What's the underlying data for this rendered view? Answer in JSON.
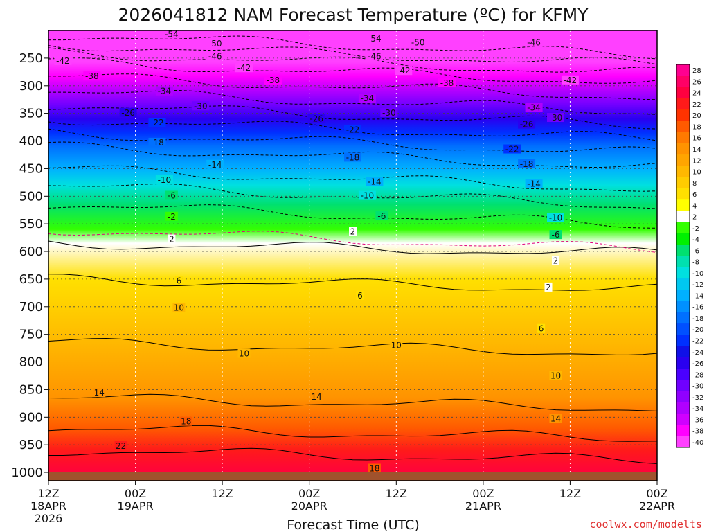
{
  "chart_data": {
    "type": "heatmap",
    "title": "2026041812 NAM Forecast Temperature (ºC) for KFMY",
    "xlabel": "Forecast Time (UTC)",
    "ylabel": "",
    "credit": "coolwx.com/modelts",
    "x_range_hours": [
      0,
      84
    ],
    "x_ticks": [
      {
        "hour": 0,
        "line1": "12Z",
        "line2": "18APR",
        "line3": "2026"
      },
      {
        "hour": 12,
        "line1": "00Z",
        "line2": "19APR",
        "line3": ""
      },
      {
        "hour": 24,
        "line1": "12Z",
        "line2": "",
        "line3": ""
      },
      {
        "hour": 36,
        "line1": "00Z",
        "line2": "20APR",
        "line3": ""
      },
      {
        "hour": 48,
        "line1": "12Z",
        "line2": "",
        "line3": ""
      },
      {
        "hour": 60,
        "line1": "00Z",
        "line2": "21APR",
        "line3": ""
      },
      {
        "hour": 72,
        "line1": "12Z",
        "line2": "",
        "line3": ""
      },
      {
        "hour": 84,
        "line1": "00Z",
        "line2": "22APR",
        "line3": ""
      }
    ],
    "y_axis": "pressure (hPa)",
    "y_range_hpa": [
      200,
      1015
    ],
    "y_ticks": [
      250,
      300,
      350,
      400,
      450,
      500,
      550,
      600,
      650,
      700,
      750,
      800,
      850,
      900,
      950,
      1000
    ],
    "colorbar_labels": [
      28,
      26,
      24,
      22,
      20,
      18,
      16,
      14,
      12,
      10,
      8,
      6,
      4,
      2,
      -2,
      -4,
      -6,
      -8,
      -10,
      -12,
      -14,
      -16,
      -18,
      -20,
      -22,
      -24,
      -26,
      -28,
      -30,
      -32,
      -34,
      -36,
      -38,
      -40
    ],
    "colorbar_colors": [
      "#ff0090",
      "#ff0066",
      "#ff0040",
      "#ff1a1a",
      "#ff3300",
      "#ff5a00",
      "#ff7a00",
      "#ff9300",
      "#ffa500",
      "#ffb800",
      "#ffcc00",
      "#ffe000",
      "#ffff00",
      "#ffffff",
      "#33ff00",
      "#00f000",
      "#00e070",
      "#00e0b0",
      "#00e0e0",
      "#00c8f0",
      "#00b0ff",
      "#0090ff",
      "#0070ff",
      "#0050ff",
      "#0030ff",
      "#1010e8",
      "#2a00f0",
      "#4a00ff",
      "#7000ff",
      "#9000ff",
      "#b000ff",
      "#d000ff",
      "#ff00ff",
      "#ff40ff"
    ],
    "isotherm_pressure_profile": [
      {
        "temp": 24,
        "p": 1005
      },
      {
        "temp": 22,
        "p": 960
      },
      {
        "temp": 18,
        "p": 920
      },
      {
        "temp": 14,
        "p": 865
      },
      {
        "temp": 10,
        "p": 765
      },
      {
        "temp": 6,
        "p": 650
      },
      {
        "temp": 2,
        "p": 585
      },
      {
        "temp": -2,
        "p": 560
      },
      {
        "temp": -6,
        "p": 515
      },
      {
        "temp": -10,
        "p": 480
      },
      {
        "temp": -14,
        "p": 450
      },
      {
        "temp": -18,
        "p": 410
      },
      {
        "temp": -22,
        "p": 385
      },
      {
        "temp": -26,
        "p": 360
      },
      {
        "temp": -30,
        "p": 335
      },
      {
        "temp": -34,
        "p": 310
      },
      {
        "temp": -38,
        "p": 283
      },
      {
        "temp": -42,
        "p": 257
      },
      {
        "temp": -46,
        "p": 240
      },
      {
        "temp": -50,
        "p": 225
      },
      {
        "temp": -54,
        "p": 208
      }
    ],
    "contour_labels": [
      {
        "text": "-54",
        "hour": 17,
        "p": 207
      },
      {
        "text": "-54",
        "hour": 45,
        "p": 215
      },
      {
        "text": "-50",
        "hour": 23,
        "p": 224
      },
      {
        "text": "-50",
        "hour": 51,
        "p": 222
      },
      {
        "text": "-46",
        "hour": 23,
        "p": 247
      },
      {
        "text": "-46",
        "hour": 45,
        "p": 247
      },
      {
        "text": "-46",
        "hour": 67,
        "p": 222
      },
      {
        "text": "-42",
        "hour": 2,
        "p": 255
      },
      {
        "text": "-42",
        "hour": 27,
        "p": 268
      },
      {
        "text": "-42",
        "hour": 49,
        "p": 273
      },
      {
        "text": "-42",
        "hour": 72,
        "p": 290
      },
      {
        "text": "-38",
        "hour": 6,
        "p": 283
      },
      {
        "text": "-38",
        "hour": 31,
        "p": 290
      },
      {
        "text": "-38",
        "hour": 55,
        "p": 295
      },
      {
        "text": "-34",
        "hour": 16,
        "p": 310
      },
      {
        "text": "-34",
        "hour": 44,
        "p": 323
      },
      {
        "text": "-34",
        "hour": 67,
        "p": 340
      },
      {
        "text": "-30",
        "hour": 21,
        "p": 337
      },
      {
        "text": "-30",
        "hour": 47,
        "p": 349
      },
      {
        "text": "-30",
        "hour": 70,
        "p": 358
      },
      {
        "text": "-26",
        "hour": 11,
        "p": 349
      },
      {
        "text": "-26",
        "hour": 37,
        "p": 360
      },
      {
        "text": "-26",
        "hour": 66,
        "p": 370
      },
      {
        "text": "-22",
        "hour": 15,
        "p": 367
      },
      {
        "text": "-22",
        "hour": 42,
        "p": 380
      },
      {
        "text": "-22",
        "hour": 64,
        "p": 415
      },
      {
        "text": "-18",
        "hour": 15,
        "p": 403
      },
      {
        "text": "-18",
        "hour": 42,
        "p": 430
      },
      {
        "text": "-18",
        "hour": 66,
        "p": 442
      },
      {
        "text": "-14",
        "hour": 23,
        "p": 443
      },
      {
        "text": "-14",
        "hour": 45,
        "p": 474
      },
      {
        "text": "-14",
        "hour": 67,
        "p": 478
      },
      {
        "text": "-10",
        "hour": 16,
        "p": 471
      },
      {
        "text": "-10",
        "hour": 44,
        "p": 499
      },
      {
        "text": "-10",
        "hour": 70,
        "p": 539
      },
      {
        "text": "-6",
        "hour": 17,
        "p": 499
      },
      {
        "text": "-6",
        "hour": 46,
        "p": 536
      },
      {
        "text": "-6",
        "hour": 70,
        "p": 570
      },
      {
        "text": "-2",
        "hour": 17,
        "p": 537
      },
      {
        "text": "2",
        "hour": 17,
        "p": 578
      },
      {
        "text": "2",
        "hour": 42,
        "p": 564
      },
      {
        "text": "2",
        "hour": 70,
        "p": 617
      },
      {
        "text": "2",
        "hour": 69,
        "p": 665
      },
      {
        "text": "6",
        "hour": 18,
        "p": 653
      },
      {
        "text": "6",
        "hour": 43,
        "p": 680
      },
      {
        "text": "6",
        "hour": 68,
        "p": 740
      },
      {
        "text": "10",
        "hour": 18,
        "p": 702
      },
      {
        "text": "10",
        "hour": 27,
        "p": 785
      },
      {
        "text": "10",
        "hour": 48,
        "p": 770
      },
      {
        "text": "10",
        "hour": 70,
        "p": 825
      },
      {
        "text": "14",
        "hour": 7,
        "p": 856
      },
      {
        "text": "14",
        "hour": 37,
        "p": 863
      },
      {
        "text": "14",
        "hour": 70,
        "p": 903
      },
      {
        "text": "18",
        "hour": 19,
        "p": 908
      },
      {
        "text": "18",
        "hour": 45,
        "p": 993
      },
      {
        "text": "22",
        "hour": 10,
        "p": 952
      }
    ]
  }
}
